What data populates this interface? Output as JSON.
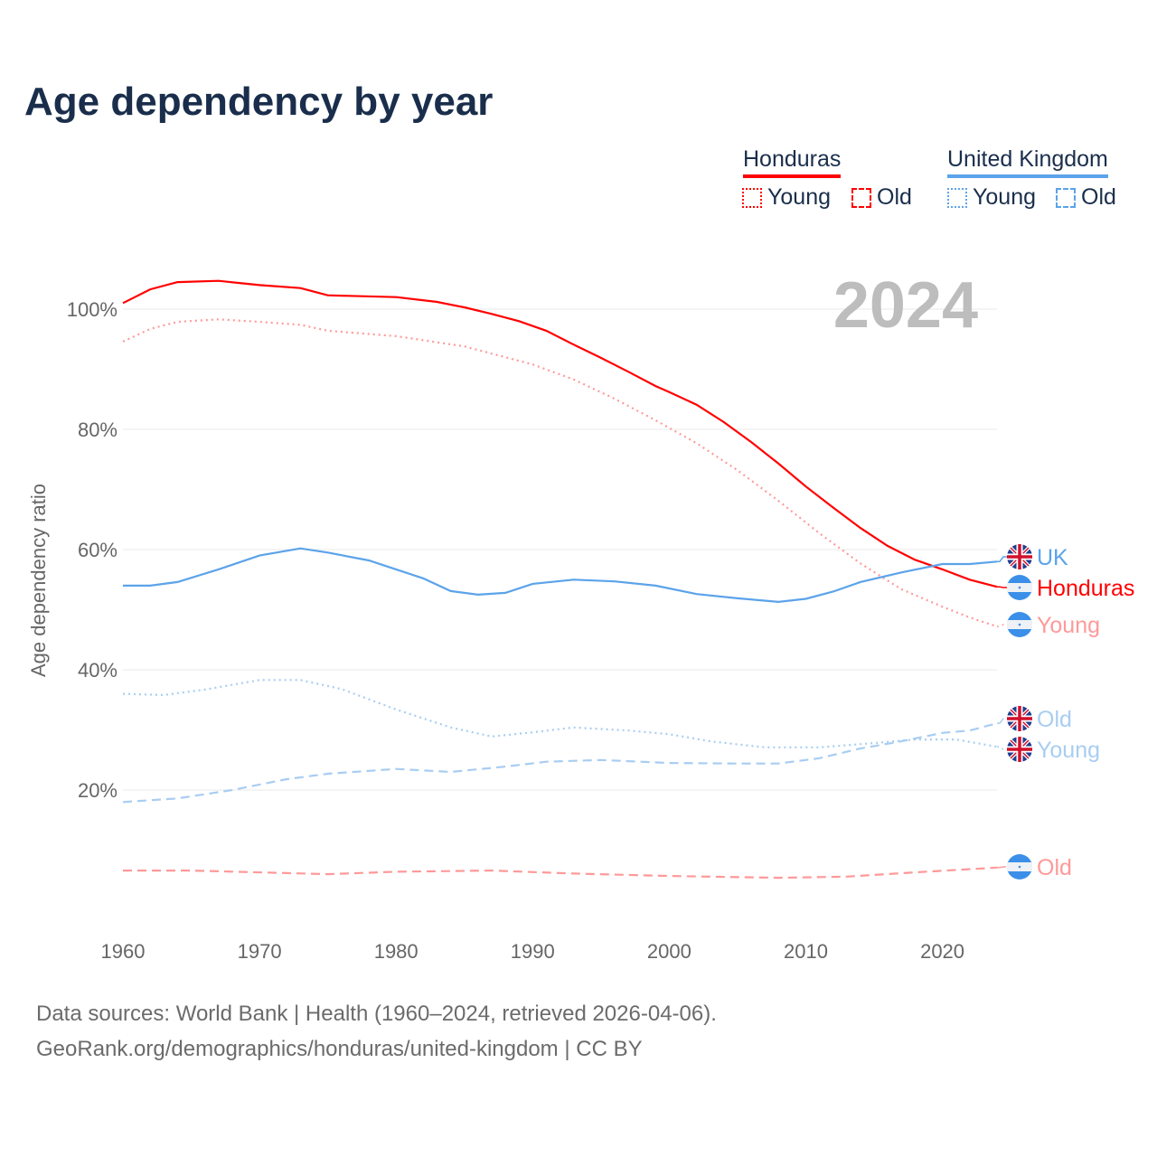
{
  "chart_data": {
    "type": "line",
    "title": "Age dependency by year",
    "ylabel": "Age dependency ratio",
    "xlabel": "",
    "xlim": [
      1960,
      2024
    ],
    "ylim": [
      0,
      110
    ],
    "x_ticks": [
      "1960",
      "1970",
      "1980",
      "1990",
      "2000",
      "2010",
      "2020"
    ],
    "y_ticks": [
      "20%",
      "40%",
      "60%",
      "80%",
      "100%"
    ],
    "y_tick_values": [
      20,
      40,
      60,
      80,
      100
    ],
    "grid": true,
    "year_watermark": "2024",
    "legend": {
      "placement": "top-right",
      "groups": [
        {
          "country": "Honduras",
          "color": "#ff0000",
          "items": [
            "Young",
            "Old"
          ]
        },
        {
          "country": "United Kingdom",
          "color": "#5ba3ea",
          "items": [
            "Young",
            "Old"
          ]
        }
      ]
    },
    "series": [
      {
        "name": "Honduras",
        "country": "Honduras",
        "kind": "total",
        "label": "Honduras",
        "color": "#ff0000",
        "style": "solid",
        "points": [
          [
            1960,
            101
          ],
          [
            1962,
            103.3
          ],
          [
            1964,
            104.5
          ],
          [
            1967,
            104.7
          ],
          [
            1970,
            104
          ],
          [
            1973,
            103.5
          ],
          [
            1975,
            102.3
          ],
          [
            1980,
            102
          ],
          [
            1983,
            101.2
          ],
          [
            1985,
            100.3
          ],
          [
            1987,
            99.2
          ],
          [
            1989,
            98
          ],
          [
            1991,
            96.4
          ],
          [
            1993,
            94.1
          ],
          [
            1995,
            91.9
          ],
          [
            1997,
            89.6
          ],
          [
            1999,
            87.2
          ],
          [
            2000,
            86.2
          ],
          [
            2002,
            84.1
          ],
          [
            2004,
            81.2
          ],
          [
            2006,
            77.9
          ],
          [
            2008,
            74.3
          ],
          [
            2010,
            70.5
          ],
          [
            2012,
            67
          ],
          [
            2014,
            63.6
          ],
          [
            2016,
            60.6
          ],
          [
            2018,
            58.3
          ],
          [
            2020,
            56.7
          ],
          [
            2022,
            55
          ],
          [
            2024,
            53.8
          ]
        ]
      },
      {
        "name": "Honduras Young",
        "country": "Honduras",
        "kind": "young",
        "label": "Young",
        "color": "#ff9999",
        "style": "dotted",
        "points": [
          [
            1960,
            94.6
          ],
          [
            1962,
            96.7
          ],
          [
            1964,
            97.9
          ],
          [
            1967,
            98.3
          ],
          [
            1970,
            97.9
          ],
          [
            1973,
            97.4
          ],
          [
            1975,
            96.4
          ],
          [
            1980,
            95.5
          ],
          [
            1985,
            93.8
          ],
          [
            1990,
            90.8
          ],
          [
            1993,
            88.3
          ],
          [
            1996,
            85.1
          ],
          [
            1999,
            81.5
          ],
          [
            2002,
            77.7
          ],
          [
            2005,
            73.2
          ],
          [
            2008,
            68.1
          ],
          [
            2011,
            62.7
          ],
          [
            2014,
            57.7
          ],
          [
            2017,
            53.4
          ],
          [
            2020,
            50.5
          ],
          [
            2022,
            48.7
          ],
          [
            2024,
            47.2
          ]
        ]
      },
      {
        "name": "Honduras Old",
        "country": "Honduras",
        "kind": "old",
        "label": "Old",
        "color": "#ff9999",
        "style": "dashed",
        "points": [
          [
            1960,
            6.6
          ],
          [
            1965,
            6.6
          ],
          [
            1975,
            6.0
          ],
          [
            1980,
            6.4
          ],
          [
            1987,
            6.6
          ],
          [
            1993,
            6.1
          ],
          [
            2000,
            5.7
          ],
          [
            2008,
            5.4
          ],
          [
            2013,
            5.6
          ],
          [
            2018,
            6.3
          ],
          [
            2024,
            7.1
          ]
        ]
      },
      {
        "name": "UK",
        "country": "United Kingdom",
        "kind": "total",
        "label": "UK",
        "color": "#5ba3ea",
        "style": "solid",
        "points": [
          [
            1960,
            54
          ],
          [
            1962,
            54
          ],
          [
            1964,
            54.6
          ],
          [
            1967,
            56.7
          ],
          [
            1970,
            59
          ],
          [
            1973,
            60.2
          ],
          [
            1975,
            59.5
          ],
          [
            1978,
            58.2
          ],
          [
            1980,
            56.7
          ],
          [
            1982,
            55.2
          ],
          [
            1984,
            53.1
          ],
          [
            1986,
            52.5
          ],
          [
            1988,
            52.8
          ],
          [
            1990,
            54.3
          ],
          [
            1993,
            55
          ],
          [
            1996,
            54.7
          ],
          [
            1999,
            54
          ],
          [
            2002,
            52.6
          ],
          [
            2005,
            51.9
          ],
          [
            2008,
            51.3
          ],
          [
            2010,
            51.8
          ],
          [
            2012,
            53
          ],
          [
            2014,
            54.6
          ],
          [
            2017,
            56.2
          ],
          [
            2020,
            57.6
          ],
          [
            2022,
            57.6
          ],
          [
            2024,
            58
          ]
        ]
      },
      {
        "name": "UK Young",
        "country": "United Kingdom",
        "kind": "young",
        "label": "Young",
        "color": "#a8cdf2",
        "style": "dotted",
        "points": [
          [
            1960,
            36
          ],
          [
            1963,
            35.8
          ],
          [
            1966,
            36.7
          ],
          [
            1970,
            38.3
          ],
          [
            1973,
            38.3
          ],
          [
            1976,
            36.8
          ],
          [
            1980,
            33.4
          ],
          [
            1984,
            30.4
          ],
          [
            1987,
            28.9
          ],
          [
            1990,
            29.6
          ],
          [
            1993,
            30.4
          ],
          [
            1997,
            29.9
          ],
          [
            2000,
            29.3
          ],
          [
            2003,
            28.1
          ],
          [
            2007,
            27.1
          ],
          [
            2011,
            27.1
          ],
          [
            2015,
            27.8
          ],
          [
            2018,
            28.4
          ],
          [
            2021,
            28.4
          ],
          [
            2024,
            27.2
          ]
        ]
      },
      {
        "name": "UK Old",
        "country": "United Kingdom",
        "kind": "old",
        "label": "Old",
        "color": "#a8cdf2",
        "style": "dashed",
        "points": [
          [
            1960,
            18
          ],
          [
            1964,
            18.6
          ],
          [
            1968,
            20
          ],
          [
            1972,
            21.8
          ],
          [
            1975,
            22.7
          ],
          [
            1980,
            23.5
          ],
          [
            1984,
            23
          ],
          [
            1988,
            23.9
          ],
          [
            1991,
            24.7
          ],
          [
            1995,
            25
          ],
          [
            2000,
            24.5
          ],
          [
            2005,
            24.4
          ],
          [
            2008,
            24.4
          ],
          [
            2011,
            25.3
          ],
          [
            2014,
            26.9
          ],
          [
            2017,
            28.1
          ],
          [
            2020,
            29.5
          ],
          [
            2022,
            29.9
          ],
          [
            2024,
            31.1
          ]
        ]
      }
    ]
  },
  "footer": {
    "sources": "Data sources: World Bank | Health (1960–2024, retrieved 2026-04-06).",
    "link": "GeoRank.org/demographics/honduras/united-kingdom | CC BY"
  }
}
